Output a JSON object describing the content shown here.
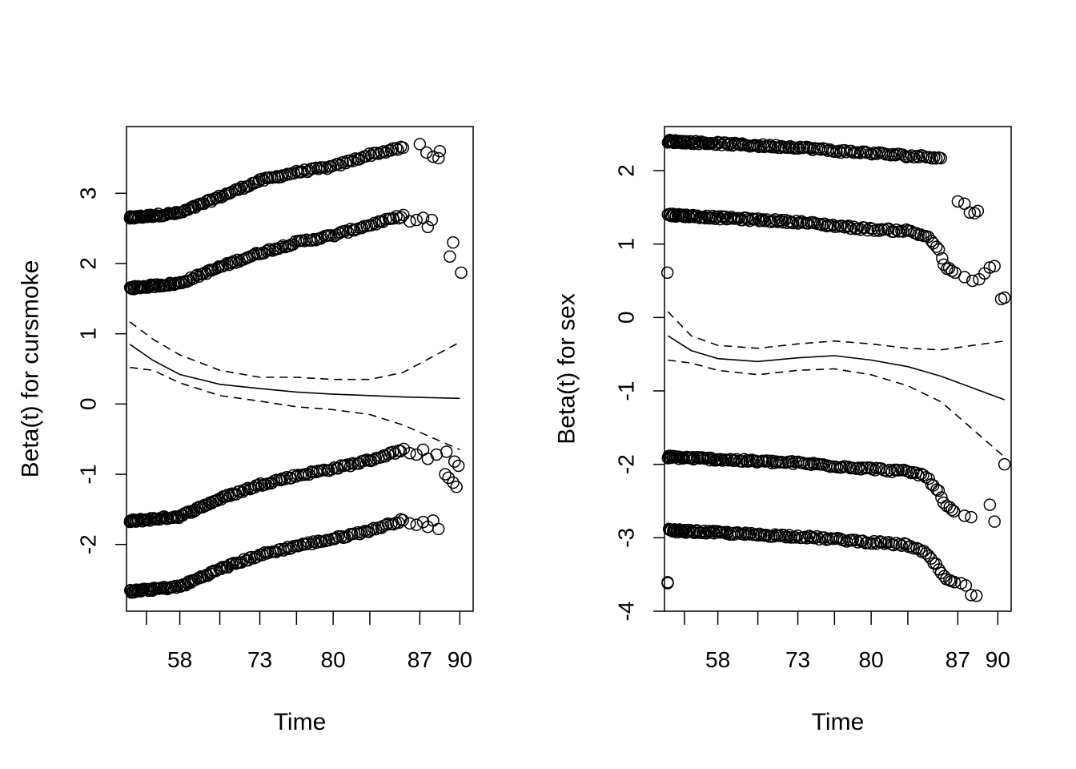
{
  "chart_data": [
    {
      "type": "scatter",
      "title": "",
      "xlabel": "Time",
      "ylabel": "Beta(t) for cursmoke",
      "x_ticks": [
        {
          "pos": 0.5,
          "label": ""
        },
        {
          "pos": 1.0,
          "label": "58"
        },
        {
          "pos": 1.6,
          "label": ""
        },
        {
          "pos": 2.2,
          "label": "73"
        },
        {
          "pos": 2.75,
          "label": ""
        },
        {
          "pos": 3.3,
          "label": "80"
        },
        {
          "pos": 3.85,
          "label": ""
        },
        {
          "pos": 4.6,
          "label": "87"
        },
        {
          "pos": 5.2,
          "label": "90"
        }
      ],
      "xlim": [
        0.2,
        5.4
      ],
      "ylim": [
        -2.95,
        3.95
      ],
      "y_ticks": [
        -2,
        -1,
        0,
        1,
        2,
        3
      ],
      "grid": false,
      "series": [
        {
          "role": "residuals",
          "trend": [
            [
              0.25,
              2.65
            ],
            [
              1.0,
              2.72
            ],
            [
              1.6,
              2.95
            ],
            [
              2.2,
              3.18
            ],
            [
              2.75,
              3.3
            ],
            [
              3.3,
              3.38
            ],
            [
              3.85,
              3.55
            ],
            [
              4.35,
              3.65
            ]
          ],
          "outliers": [
            [
              4.6,
              3.7
            ],
            [
              4.7,
              3.58
            ],
            [
              4.8,
              3.52
            ],
            [
              4.9,
              3.6
            ],
            [
              4.88,
              3.5
            ]
          ]
        },
        {
          "role": "residuals",
          "trend": [
            [
              0.25,
              1.65
            ],
            [
              1.0,
              1.72
            ],
            [
              1.6,
              1.95
            ],
            [
              2.2,
              2.15
            ],
            [
              2.75,
              2.3
            ],
            [
              3.3,
              2.4
            ],
            [
              3.85,
              2.55
            ],
            [
              4.35,
              2.68
            ]
          ],
          "outliers": [
            [
              4.45,
              2.6
            ],
            [
              4.55,
              2.62
            ],
            [
              4.65,
              2.65
            ],
            [
              4.72,
              2.52
            ],
            [
              4.78,
              2.62
            ],
            [
              5.05,
              2.1
            ],
            [
              5.1,
              2.3
            ],
            [
              5.22,
              1.87
            ]
          ]
        },
        {
          "role": "residuals",
          "trend": [
            [
              0.25,
              -1.67
            ],
            [
              1.0,
              -1.6
            ],
            [
              1.6,
              -1.35
            ],
            [
              2.2,
              -1.15
            ],
            [
              2.75,
              -1.02
            ],
            [
              3.3,
              -0.92
            ],
            [
              3.85,
              -0.8
            ],
            [
              4.35,
              -0.65
            ]
          ],
          "outliers": [
            [
              4.45,
              -0.7
            ],
            [
              4.55,
              -0.72
            ],
            [
              4.65,
              -0.65
            ],
            [
              4.72,
              -0.78
            ],
            [
              4.85,
              -0.72
            ],
            [
              5.0,
              -0.68
            ],
            [
              4.98,
              -1.0
            ],
            [
              5.03,
              -1.05
            ],
            [
              5.1,
              -1.12
            ],
            [
              5.15,
              -1.18
            ],
            [
              5.12,
              -0.82
            ],
            [
              5.18,
              -0.88
            ]
          ]
        },
        {
          "role": "residuals",
          "trend": [
            [
              0.25,
              -2.67
            ],
            [
              1.0,
              -2.6
            ],
            [
              1.6,
              -2.35
            ],
            [
              2.2,
              -2.15
            ],
            [
              2.75,
              -2.02
            ],
            [
              3.3,
              -1.92
            ],
            [
              3.85,
              -1.8
            ],
            [
              4.35,
              -1.65
            ]
          ],
          "outliers": [
            [
              4.45,
              -1.7
            ],
            [
              4.55,
              -1.72
            ],
            [
              4.65,
              -1.68
            ],
            [
              4.72,
              -1.75
            ],
            [
              4.8,
              -1.66
            ],
            [
              4.88,
              -1.78
            ]
          ]
        },
        {
          "role": "fit",
          "style": "solid",
          "points": [
            [
              0.25,
              0.85
            ],
            [
              0.6,
              0.62
            ],
            [
              1.0,
              0.42
            ],
            [
              1.6,
              0.28
            ],
            [
              2.2,
              0.22
            ],
            [
              2.75,
              0.17
            ],
            [
              3.3,
              0.14
            ],
            [
              3.85,
              0.12
            ],
            [
              4.35,
              0.1
            ],
            [
              5.2,
              0.08
            ]
          ]
        },
        {
          "role": "ci_upper",
          "style": "dashed",
          "points": [
            [
              0.25,
              1.17
            ],
            [
              0.6,
              0.92
            ],
            [
              1.0,
              0.7
            ],
            [
              1.6,
              0.48
            ],
            [
              2.2,
              0.38
            ],
            [
              2.75,
              0.38
            ],
            [
              3.3,
              0.35
            ],
            [
              3.85,
              0.35
            ],
            [
              4.35,
              0.45
            ],
            [
              5.2,
              0.88
            ]
          ]
        },
        {
          "role": "ci_lower",
          "style": "dashed",
          "points": [
            [
              0.25,
              0.52
            ],
            [
              0.6,
              0.48
            ],
            [
              1.0,
              0.3
            ],
            [
              1.6,
              0.12
            ],
            [
              2.2,
              0.04
            ],
            [
              2.75,
              -0.04
            ],
            [
              3.3,
              -0.08
            ],
            [
              3.85,
              -0.15
            ],
            [
              4.35,
              -0.3
            ],
            [
              5.2,
              -0.65
            ]
          ]
        }
      ]
    },
    {
      "type": "scatter",
      "title": "",
      "xlabel": "Time",
      "ylabel": "Beta(t) for sex",
      "x_ticks": [
        {
          "pos": 0.5,
          "label": ""
        },
        {
          "pos": 1.0,
          "label": "58"
        },
        {
          "pos": 1.6,
          "label": ""
        },
        {
          "pos": 2.2,
          "label": "73"
        },
        {
          "pos": 2.75,
          "label": ""
        },
        {
          "pos": 3.3,
          "label": "80"
        },
        {
          "pos": 3.85,
          "label": ""
        },
        {
          "pos": 4.6,
          "label": "87"
        },
        {
          "pos": 5.2,
          "label": "90"
        }
      ],
      "xlim": [
        0.2,
        5.4
      ],
      "ylim": [
        -4.0,
        2.6
      ],
      "y_ticks": [
        -4,
        -3,
        -2,
        -1,
        0,
        1,
        2
      ],
      "grid": false,
      "series": [
        {
          "role": "residuals",
          "trend": [
            [
              0.25,
              2.4
            ],
            [
              1.0,
              2.37
            ],
            [
              1.6,
              2.34
            ],
            [
              2.2,
              2.32
            ],
            [
              2.75,
              2.27
            ],
            [
              3.3,
              2.24
            ],
            [
              3.85,
              2.2
            ],
            [
              4.35,
              2.18
            ]
          ],
          "outliers": [
            [
              4.6,
              1.58
            ],
            [
              4.7,
              1.55
            ],
            [
              4.78,
              1.43
            ],
            [
              4.85,
              1.42
            ],
            [
              4.9,
              1.45
            ]
          ]
        },
        {
          "role": "residuals",
          "trend": [
            [
              0.25,
              1.4
            ],
            [
              1.0,
              1.36
            ],
            [
              1.6,
              1.33
            ],
            [
              2.2,
              1.3
            ],
            [
              2.75,
              1.25
            ],
            [
              3.3,
              1.2
            ],
            [
              3.85,
              1.18
            ],
            [
              4.15,
              1.1
            ],
            [
              4.3,
              0.95
            ],
            [
              4.4,
              0.7
            ],
            [
              4.55,
              0.6
            ]
          ],
          "outliers": [
            [
              4.7,
              0.55
            ],
            [
              4.82,
              0.5
            ],
            [
              4.92,
              0.52
            ],
            [
              5.0,
              0.6
            ],
            [
              5.08,
              0.68
            ],
            [
              5.15,
              0.7
            ],
            [
              5.25,
              0.25
            ],
            [
              5.3,
              0.27
            ]
          ]
        },
        {
          "role": "residuals",
          "trend": [
            [
              0.25,
              -1.9
            ],
            [
              1.0,
              -1.93
            ],
            [
              1.6,
              -1.96
            ],
            [
              2.2,
              -1.98
            ],
            [
              2.75,
              -2.02
            ],
            [
              3.3,
              -2.06
            ],
            [
              3.85,
              -2.1
            ],
            [
              4.1,
              -2.15
            ],
            [
              4.3,
              -2.35
            ],
            [
              4.4,
              -2.55
            ],
            [
              4.55,
              -2.65
            ]
          ],
          "outliers": [
            [
              4.7,
              -2.7
            ],
            [
              4.8,
              -2.72
            ],
            [
              5.08,
              -2.55
            ],
            [
              5.15,
              -2.78
            ],
            [
              5.3,
              -2.0
            ]
          ]
        },
        {
          "role": "residuals",
          "trend": [
            [
              0.25,
              -2.9
            ],
            [
              1.0,
              -2.93
            ],
            [
              1.6,
              -2.96
            ],
            [
              2.2,
              -2.98
            ],
            [
              2.75,
              -3.02
            ],
            [
              3.3,
              -3.06
            ],
            [
              3.85,
              -3.1
            ],
            [
              4.1,
              -3.2
            ],
            [
              4.3,
              -3.4
            ],
            [
              4.4,
              -3.55
            ],
            [
              4.55,
              -3.62
            ]
          ],
          "outliers": [
            [
              4.65,
              -3.62
            ],
            [
              4.72,
              -3.65
            ],
            [
              4.8,
              -3.78
            ],
            [
              4.88,
              -3.79
            ]
          ]
        },
        {
          "role": "fit",
          "style": "solid",
          "points": [
            [
              0.25,
              -0.25
            ],
            [
              0.6,
              -0.45
            ],
            [
              1.0,
              -0.56
            ],
            [
              1.6,
              -0.6
            ],
            [
              2.2,
              -0.55
            ],
            [
              2.75,
              -0.52
            ],
            [
              3.3,
              -0.58
            ],
            [
              3.85,
              -0.67
            ],
            [
              4.35,
              -0.8
            ],
            [
              5.3,
              -1.12
            ]
          ]
        },
        {
          "role": "ci_upper",
          "style": "dashed",
          "points": [
            [
              0.25,
              0.08
            ],
            [
              0.6,
              -0.25
            ],
            [
              1.0,
              -0.38
            ],
            [
              1.6,
              -0.42
            ],
            [
              2.2,
              -0.36
            ],
            [
              2.75,
              -0.32
            ],
            [
              3.3,
              -0.36
            ],
            [
              3.85,
              -0.42
            ],
            [
              4.35,
              -0.44
            ],
            [
              5.3,
              -0.32
            ]
          ]
        },
        {
          "role": "ci_lower",
          "style": "dashed",
          "points": [
            [
              0.25,
              -0.58
            ],
            [
              0.6,
              -0.62
            ],
            [
              1.0,
              -0.72
            ],
            [
              1.6,
              -0.78
            ],
            [
              2.2,
              -0.72
            ],
            [
              2.75,
              -0.7
            ],
            [
              3.3,
              -0.78
            ],
            [
              3.85,
              -0.93
            ],
            [
              4.35,
              -1.15
            ],
            [
              5.3,
              -1.9
            ]
          ]
        }
      ]
    }
  ]
}
